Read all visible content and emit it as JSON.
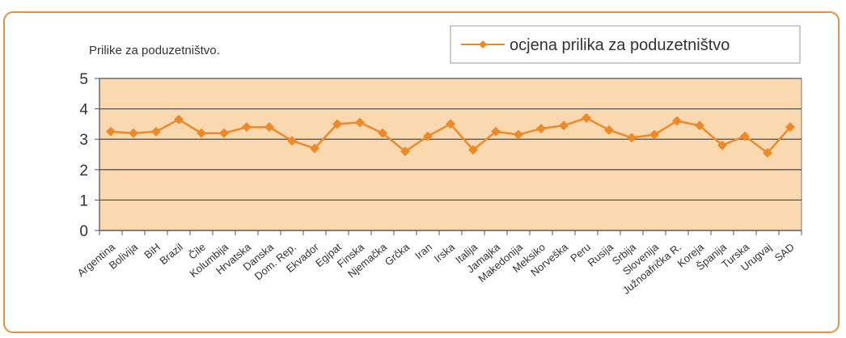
{
  "chart_data": {
    "type": "line",
    "title": "Prilike za poduzetništvo.",
    "xlabel": "",
    "ylabel": "",
    "ylim": [
      0,
      5
    ],
    "yticks": [
      0,
      1,
      2,
      3,
      4,
      5
    ],
    "grid": true,
    "legend_position": "top-right",
    "plot_background": "#fbd9b0",
    "line_color": "#ec8a2a",
    "frame_color": "#e8913f",
    "categories": [
      "Argentina",
      "Bolivija",
      "BiH",
      "Brazil",
      "Čile",
      "Kolumbija",
      "Hrvatska",
      "Danska",
      "Dom. Rep.",
      "Ekvador",
      "Egipat",
      "Finska",
      "Njemačka",
      "Grčka",
      "Iran",
      "Irska",
      "Italija",
      "Jamajka",
      "Makedonija",
      "Meksiko",
      "Norveška",
      "Peru",
      "Rusija",
      "Srbija",
      "Slovenija",
      "Južnoafrička R.",
      "Koreja",
      "Španija",
      "Turska",
      "Urugvaj",
      "SAD"
    ],
    "series": [
      {
        "name": "ocjena prilika za poduzetništvo",
        "values": [
          3.25,
          3.2,
          3.25,
          3.65,
          3.2,
          3.2,
          3.4,
          3.4,
          2.95,
          2.7,
          3.5,
          3.55,
          3.2,
          2.6,
          3.1,
          3.5,
          2.65,
          3.25,
          3.15,
          3.35,
          3.45,
          3.7,
          3.3,
          3.05,
          3.15,
          3.6,
          3.45,
          2.8,
          3.1,
          2.55,
          3.4
        ]
      }
    ]
  }
}
